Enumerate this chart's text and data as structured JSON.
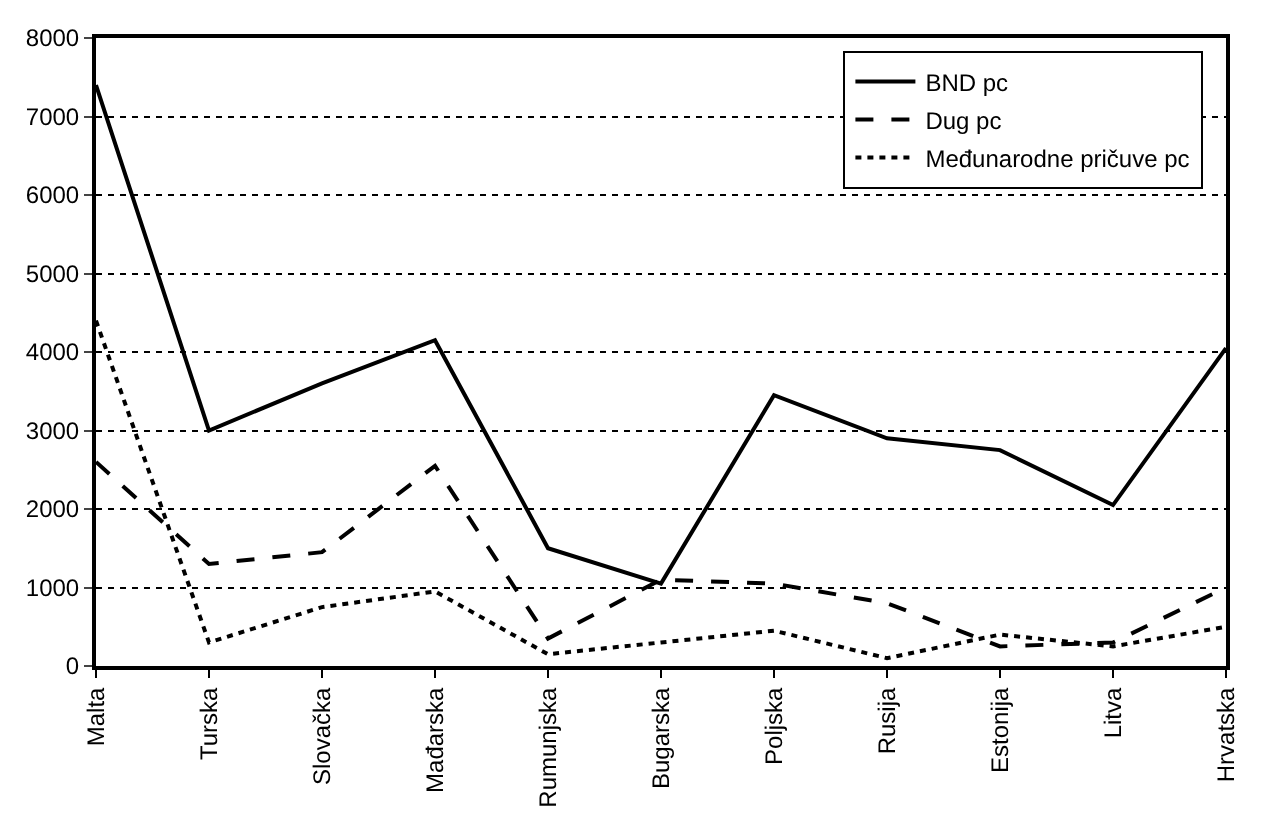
{
  "chart_data": {
    "type": "line",
    "categories": [
      "Malta",
      "Turska",
      "Slovačka",
      "Mađarska",
      "Rumunjska",
      "Bugarska",
      "Poljska",
      "Rusija",
      "Estonija",
      "Litva",
      "Hrvatska"
    ],
    "series": [
      {
        "name": "BND pc",
        "color": "#000000",
        "line_style": "solid",
        "values": [
          7400,
          3000,
          3600,
          4150,
          1500,
          1050,
          3450,
          2900,
          2750,
          2050,
          4050
        ]
      },
      {
        "name": "Dug pc",
        "color": "#000000",
        "line_style": "dashed",
        "values": [
          2600,
          1300,
          1450,
          2550,
          350,
          1100,
          1050,
          800,
          250,
          300,
          1000
        ]
      },
      {
        "name": "Međunarodne pričuve pc",
        "color": "#000000",
        "line_style": "dotted",
        "values": [
          4400,
          300,
          750,
          950,
          150,
          300,
          450,
          100,
          400,
          250,
          500
        ]
      }
    ],
    "ylim": [
      0,
      8000
    ],
    "yticks": [
      0,
      1000,
      2000,
      3000,
      4000,
      5000,
      6000,
      7000,
      8000
    ],
    "grid": "y",
    "legend": "top right",
    "marker": "none"
  }
}
